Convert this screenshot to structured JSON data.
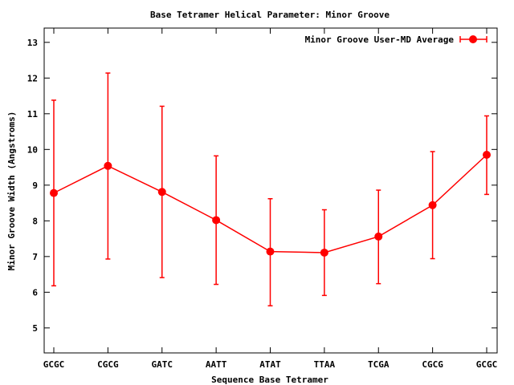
{
  "chart_data": {
    "type": "line",
    "title": "Base Tetramer Helical Parameter: Minor Groove",
    "xlabel": "Sequence Base Tetramer",
    "ylabel": "Minor Groove Width (Angstroms)",
    "categories": [
      "GCGC",
      "CGCG",
      "GATC",
      "AATT",
      "ATAT",
      "TTAA",
      "TCGA",
      "CGCG",
      "GCGC"
    ],
    "ylim": [
      4.3,
      13.4
    ],
    "yticks": [
      5,
      6,
      7,
      8,
      9,
      10,
      11,
      12,
      13
    ],
    "grid": false,
    "legend_position": "top-right",
    "series": [
      {
        "name": "Minor Groove User-MD Average",
        "color": "#ff0000",
        "marker": "circle",
        "values": [
          8.78,
          9.54,
          8.81,
          8.02,
          7.14,
          7.11,
          7.56,
          8.44,
          9.85
        ],
        "error_low": [
          6.18,
          6.93,
          6.41,
          6.22,
          5.62,
          5.91,
          6.24,
          6.94,
          8.74
        ],
        "error_high": [
          11.38,
          12.14,
          11.21,
          9.82,
          8.62,
          8.31,
          8.86,
          9.94,
          10.94
        ]
      }
    ]
  }
}
